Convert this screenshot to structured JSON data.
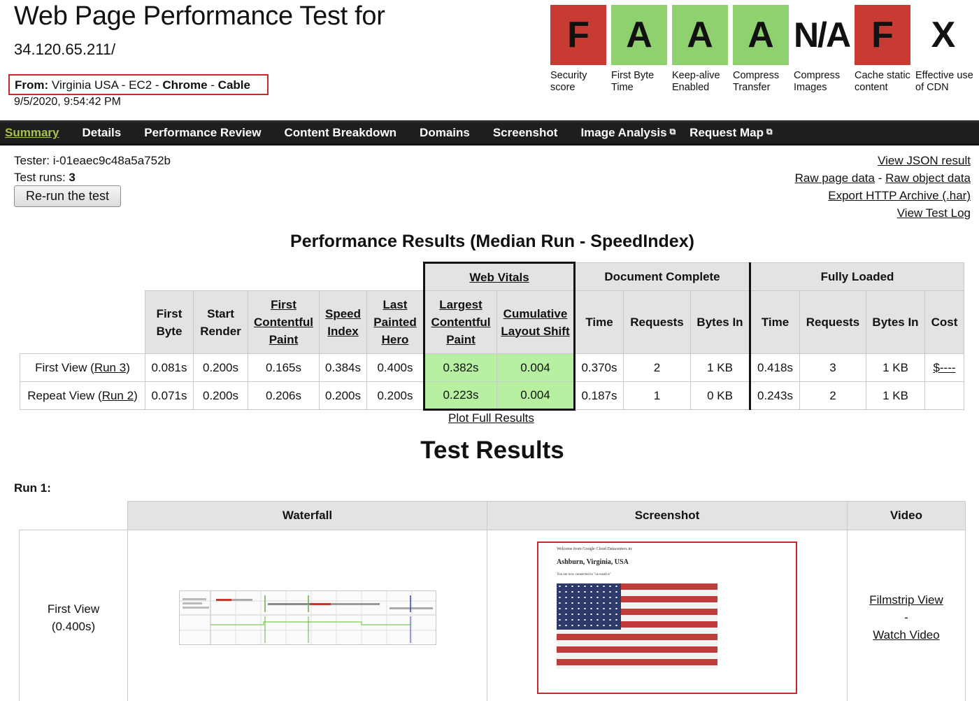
{
  "header": {
    "title": "Web Page Performance Test for",
    "url": "34.120.65.211/",
    "from_label": "From:",
    "from_location": "Virginia USA - EC2 - ",
    "from_browser": "Chrome",
    "from_sep": " - ",
    "from_connection": "Cable",
    "date": "9/5/2020, 9:54:42 PM"
  },
  "grades": [
    {
      "grade": "F",
      "label": "Security score",
      "color": "#c73b33"
    },
    {
      "grade": "A",
      "label": "First Byte Time",
      "color": "#8fd16f"
    },
    {
      "grade": "A",
      "label": "Keep-alive Enabled",
      "color": "#8fd16f"
    },
    {
      "grade": "A",
      "label": "Compress Transfer",
      "color": "#8fd16f"
    },
    {
      "grade": "N/A",
      "label": "Compress Images",
      "color": "transparent"
    },
    {
      "grade": "F",
      "label": "Cache static content",
      "color": "#c73b33"
    },
    {
      "grade": "X",
      "label": "Effective use of CDN",
      "color": "transparent"
    }
  ],
  "nav": {
    "tabs": [
      "Summary",
      "Details",
      "Performance Review",
      "Content Breakdown",
      "Domains",
      "Screenshot",
      "Image Analysis",
      "Request Map"
    ],
    "active": "Summary"
  },
  "tester": {
    "tester_label": "Tester: i-01eaec9c48a5a752b",
    "runs_label": "Test runs: ",
    "runs_value": "3",
    "rerun_button": "Re-run the test"
  },
  "links": {
    "view_json": "View JSON result",
    "raw_page": "Raw page data",
    "dash": " - ",
    "raw_object": "Raw object data",
    "export_har": "Export HTTP Archive (.har)",
    "view_log": "View Test Log"
  },
  "perf": {
    "title": "Performance Results (Median Run - SpeedIndex)",
    "group_web_vitals": "Web Vitals",
    "group_doc_complete": "Document Complete",
    "group_fully_loaded": "Fully Loaded",
    "headers": {
      "first_byte": "First Byte",
      "start_render": "Start Render",
      "fcp": "First Contentful Paint",
      "speed_index": "Speed Index",
      "lph": "Last Painted Hero",
      "lcp": "Largest Contentful Paint",
      "cls": "Cumulative Layout Shift",
      "dc_time": "Time",
      "dc_requests": "Requests",
      "dc_bytes": "Bytes In",
      "fl_time": "Time",
      "fl_requests": "Requests",
      "fl_bytes": "Bytes In",
      "cost": "Cost"
    },
    "rows": [
      {
        "label": "First View (",
        "run_link": "Run 3",
        "label_end": ")",
        "first_byte": "0.081s",
        "start_render": "0.200s",
        "fcp": "0.165s",
        "speed_index": "0.384s",
        "lph": "0.400s",
        "lcp": "0.382s",
        "cls": "0.004",
        "dc_time": "0.370s",
        "dc_requests": "2",
        "dc_bytes": "1 KB",
        "fl_time": "0.418s",
        "fl_requests": "3",
        "fl_bytes": "1 KB",
        "cost": "$----"
      },
      {
        "label": "Repeat View (",
        "run_link": "Run 2",
        "label_end": ")",
        "first_byte": "0.071s",
        "start_render": "0.200s",
        "fcp": "0.206s",
        "speed_index": "0.200s",
        "lph": "0.200s",
        "lcp": "0.223s",
        "cls": "0.004",
        "dc_time": "0.187s",
        "dc_requests": "1",
        "dc_bytes": "0 KB",
        "fl_time": "0.243s",
        "fl_requests": "2",
        "fl_bytes": "1 KB",
        "cost": ""
      }
    ],
    "plot_link": "Plot Full Results"
  },
  "results": {
    "title": "Test Results",
    "run_label": "Run 1:",
    "col_waterfall": "Waterfall",
    "col_screenshot": "Screenshot",
    "col_video": "Video",
    "view_label": "First View",
    "view_time": "(0.400s)",
    "filmstrip_link": "Filmstrip View",
    "sep": "-",
    "watch_link": "Watch Video",
    "screenshot_text": {
      "welcome": "Welcome from Google Cloud Datacenters in:",
      "location": "Ashburn, Virginia, USA",
      "note": "You are now connected to \"us-east4-a\""
    }
  },
  "colors": {
    "grade_red": "#c73b33",
    "grade_green": "#8fd16f",
    "nav_bg": "#1e1e1e",
    "nav_active": "#a6c34a",
    "vitals_green": "#b6f0a0",
    "header_gray": "#e3e3e3",
    "highlight_red": "#c62b2b"
  }
}
